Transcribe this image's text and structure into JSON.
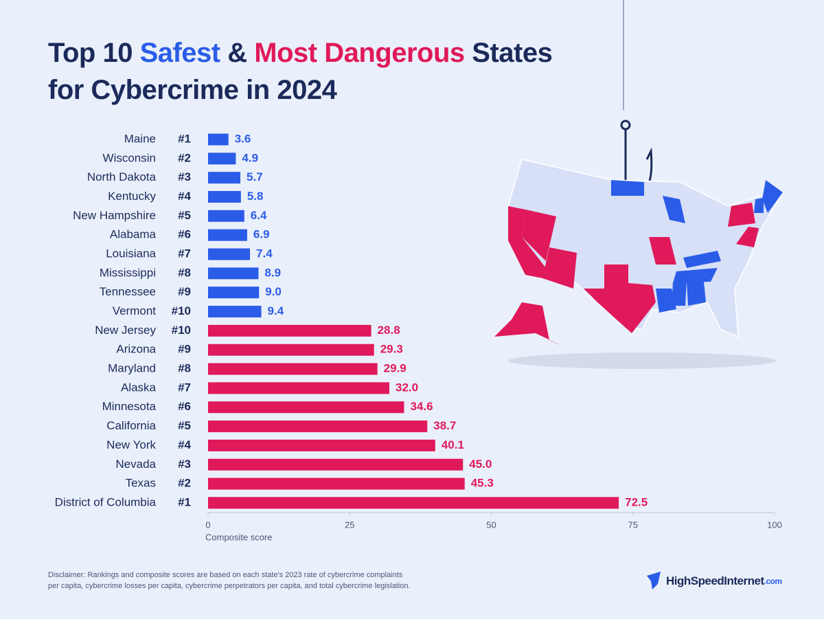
{
  "chart_data": {
    "type": "bar",
    "orientation": "horizontal",
    "title_parts": [
      "Top 10",
      "Safest",
      "&",
      "Most Dangerous",
      "States",
      "for Cybercrime in 2024"
    ],
    "title_colors": [
      "#1b2a5a",
      "#2b5ce8",
      "#1b2a5a",
      "#e0195a",
      "#1b2a5a",
      "#1b2a5a"
    ],
    "series": [
      {
        "color": "#2b5ce8",
        "categories": [
          "Maine",
          "Wisconsin",
          "North Dakota",
          "Kentucky",
          "New Hampshire",
          "Alabama",
          "Louisiana",
          "Mississippi",
          "Tennessee",
          "Vermont"
        ],
        "ranks": [
          "#1",
          "#2",
          "#3",
          "#4",
          "#5",
          "#6",
          "#7",
          "#8",
          "#9",
          "#10"
        ],
        "values": [
          3.6,
          4.9,
          5.7,
          5.8,
          6.4,
          6.9,
          7.4,
          8.9,
          9.0,
          9.4
        ],
        "value_labels": [
          "3.6",
          "4.9",
          "5.7",
          "5.8",
          "6.4",
          "6.9",
          "7.4",
          "8.9",
          "9.0",
          "9.4"
        ]
      },
      {
        "color": "#e0195a",
        "categories": [
          "New Jersey",
          "Arizona",
          "Maryland",
          "Alaska",
          "Minnesota",
          "California",
          "New York",
          "Nevada",
          "Texas",
          "District of Columbia"
        ],
        "ranks": [
          "#10",
          "#9",
          "#8",
          "#7",
          "#6",
          "#5",
          "#4",
          "#3",
          "#2",
          "#1"
        ],
        "values": [
          28.8,
          29.3,
          29.9,
          32.0,
          34.6,
          38.7,
          40.1,
          45.0,
          45.3,
          72.5
        ],
        "value_labels": [
          "28.8",
          "29.3",
          "29.9",
          "32.0",
          "34.6",
          "38.7",
          "40.1",
          "45.0",
          "45.3",
          "72.5"
        ]
      }
    ],
    "xlim": [
      0,
      100
    ],
    "xticks": [
      0,
      25,
      50,
      75,
      100
    ],
    "xlabel": "Composite score",
    "disclaimer": [
      "Disclaimer: Rankings and composite scores are based on each state's 2023 rate of cybercrime complaints",
      "per capita, cybercrime losses per capita, cybercrime perpetrators per capita, and total cybercrime legislation."
    ],
    "brand": [
      "HighSpeedInternet",
      ".com"
    ]
  }
}
